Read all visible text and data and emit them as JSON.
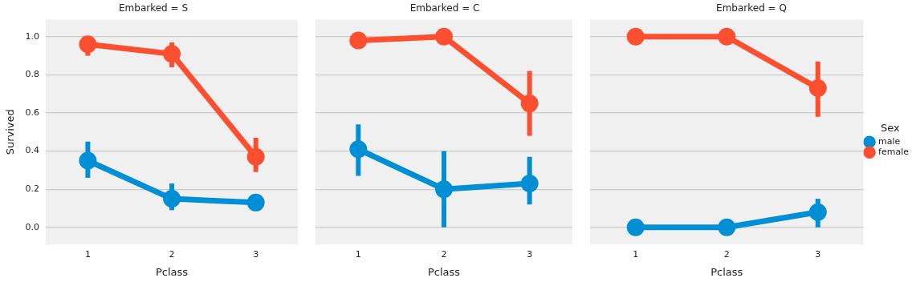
{
  "chart_data": [
    {
      "type": "line",
      "title": "Embarked = S",
      "xlabel": "Pclass",
      "ylabel": "Survived",
      "categories": [
        "1",
        "2",
        "3"
      ],
      "ylim": [
        -0.09,
        1.09
      ],
      "yticks": [
        {
          "value": 0,
          "label": "0.0"
        },
        {
          "value": 0.2,
          "label": "0.2"
        },
        {
          "value": 0.4,
          "label": "0.4"
        },
        {
          "value": 0.6,
          "label": "0.6"
        },
        {
          "value": 0.8,
          "label": "0.8"
        },
        {
          "value": 1,
          "label": "1.0"
        }
      ],
      "grid": "y",
      "marker": "circle",
      "legend": false,
      "series": [
        {
          "color": "#008fd5",
          "values": [
            0.35,
            0.15,
            0.13
          ],
          "errors": [
            [
              0.26,
              0.45
            ],
            [
              0.09,
              0.23
            ],
            null
          ]
        },
        {
          "color": "#fc4f30",
          "values": [
            0.96,
            0.91,
            0.37
          ],
          "errors": [
            [
              0.9,
              0.96
            ],
            [
              0.84,
              0.97
            ],
            [
              0.29,
              0.47
            ]
          ]
        }
      ]
    },
    {
      "type": "line",
      "title": "Embarked = C",
      "xlabel": "Pclass",
      "categories": [
        "1",
        "2",
        "3"
      ],
      "ylim": [
        -0.09,
        1.09
      ],
      "yticks": [
        0,
        0.2,
        0.4,
        0.6,
        0.8,
        1
      ],
      "tick_labels": "x",
      "grid": "y",
      "marker": "circle",
      "legend": false,
      "series": [
        {
          "color": "#008fd5",
          "values": [
            0.41,
            0.2,
            0.23
          ],
          "errors": [
            [
              0.27,
              0.54
            ],
            [
              0.0,
              0.4
            ],
            [
              0.12,
              0.37
            ]
          ]
        },
        {
          "color": "#fc4f30",
          "values": [
            0.98,
            1.0,
            0.65
          ],
          "errors": [
            null,
            null,
            [
              0.48,
              0.82
            ]
          ]
        }
      ]
    },
    {
      "type": "line",
      "title": "Embarked = Q",
      "xlabel": "Pclass",
      "legend_title": "Sex",
      "categories": [
        "1",
        "2",
        "3"
      ],
      "ylim": [
        -0.09,
        1.09
      ],
      "yticks": [
        0,
        0.2,
        0.4,
        0.6,
        0.8,
        1
      ],
      "tick_labels": "x",
      "grid": "y",
      "marker": "circle",
      "legend": "right",
      "series": [
        {
          "name": "male",
          "color": "#008fd5",
          "values": [
            0.0,
            0.0,
            0.08
          ],
          "errors": [
            null,
            null,
            [
              0.0,
              0.15
            ]
          ]
        },
        {
          "name": "female",
          "color": "#fc4f30",
          "values": [
            1.0,
            1.0,
            0.73
          ],
          "errors": [
            null,
            null,
            [
              0.58,
              0.87
            ]
          ]
        }
      ]
    }
  ]
}
